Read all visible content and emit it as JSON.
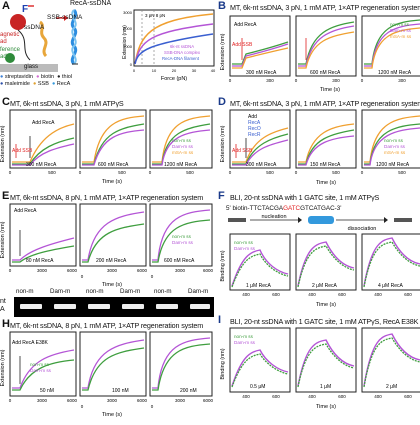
{
  "panel_labels": {
    "A": "A",
    "B": "B",
    "C": "C",
    "D": "D",
    "E": "E",
    "F": "F",
    "G": "G",
    "H": "H",
    "I": "I"
  },
  "headers": {
    "B": "MT, 6k-nt ssDNA, 3 pN, 1 mM ATP, 1×ATP regeneration system",
    "C": "MT, 6k-nt ssDNA, 3 pN, 1 mM ATPγS",
    "D": "MT, 6k-nt ssDNA, 3 pN, 1 mM ATP, 1×ATP regeneration system",
    "E": "MT, 6k-nt ssDNA, 8 pN, 1 mM ATP, 1×ATP regeneration system",
    "F": "BLI, 20-nt ssDNA with 1 GATC site, 1 mM ATPγS",
    "H": "MT, 6k-nt ssDNA, 8 pN, 1 mM ATP, 1×ATP regeneration system",
    "I": "BLI, 20-nt ssDNA with 1 GATC site, 1 mM ATPγS, RecA E38K"
  },
  "schematic": {
    "recA_ssdna": "RecA-ssDNA",
    "ssb_ssdna": "SSB-ssDNA",
    "ssdna": "ssDNA",
    "magnetic": "agnetic",
    "bead": "ad",
    "reference": "ference",
    "bead2": "ad",
    "glass": "glass",
    "legend_items": [
      "streptavidin",
      "biotin",
      "thiol",
      "maleimide",
      "SSB",
      "RecA"
    ],
    "legend_colors": [
      "#3a7fd6",
      "#d16bd1",
      "#222222",
      "#2b4ea8",
      "#e0a030",
      "#3399dd"
    ]
  },
  "force_plot": {
    "ylabel": "Extension (nm)",
    "xlabel": "Force (pN)",
    "annotation": "3 pN 8 pN",
    "legend": [
      "6k-nt ssDNA",
      "SSB-DNA complex",
      "RecA-DNA filament"
    ],
    "yticks": [
      "3000",
      "2000",
      "1000",
      "0"
    ],
    "xticks": [
      "0",
      "10",
      "20",
      "30",
      "40"
    ]
  },
  "B": {
    "ylabel": "Extension (nm)",
    "xlabel": "Time (s)",
    "panels": [
      "300 nM RecA",
      "600 nM RecA",
      "1200 nM RecA"
    ],
    "add_recA": "Add RecA",
    "add_ssb": "Add SSB",
    "legend": [
      "non-m ss",
      "Dam-m ss",
      "mSA-m ss"
    ],
    "xticks": [
      "0",
      "300",
      "0",
      "300",
      "0",
      "300"
    ]
  },
  "C": {
    "ylabel": "Extension (nm)",
    "xlabel": "Time (s)",
    "panels": [
      "300 nM RecA",
      "600 nM RecA",
      "1200 nM RecA"
    ],
    "add_recA": "Add RecA",
    "add_ssb": "Add SSB",
    "legend": [
      "non-m ss",
      "Dam-m ss",
      "mSA-m ss"
    ],
    "xticks": [
      "0",
      "500",
      "0",
      "500",
      "0",
      "500"
    ]
  },
  "D": {
    "ylabel": "Extension (nm)",
    "xlabel": "Time (s)",
    "panels": [
      "300 nM RecA",
      "150 nM RecA",
      "1200 nM RecA"
    ],
    "add_list": [
      "Add",
      "RecA",
      "RecO",
      "RecR"
    ],
    "add_ssb": "Add SSB",
    "legend": [
      "non-m ss",
      "Dam-m ss",
      "mSA-m ss"
    ],
    "xticks": [
      "0",
      "500",
      "0",
      "500",
      "0",
      "500"
    ]
  },
  "E": {
    "ylabel": "Extension (nm)",
    "xlabel": "Time (s)",
    "panels": [
      "80 nM RecA",
      "200 nM RecA",
      "600 nM RecA"
    ],
    "add_recA": "Add RecA",
    "legend": [
      "non-m ss",
      "Dam-m ss"
    ],
    "xticks": [
      "0",
      "3000",
      "6000",
      "0",
      "3000",
      "6000",
      "0",
      "3000",
      "6000"
    ]
  },
  "gel": {
    "labels": [
      "non-m",
      "Dam-m",
      "non-m",
      "Dam-m",
      "non-m",
      "Dam-m"
    ],
    "side_label_1": "nt",
    "side_label_2": "A"
  },
  "F": {
    "sequence_prefix": "5' biotin-TTCTACGA",
    "sequence_site": "GATC",
    "sequence_suffix": "GTCATGAC-3'",
    "nucleation": "nucleation",
    "dissociation": "dissociation",
    "ylabel": "Binding (nm)",
    "xlabel": "Time (s)",
    "panels": [
      "1 μM RecA",
      "2 μM RecA",
      "4 μM RecA"
    ],
    "legend": [
      "non-m ss",
      "Dam-m ss"
    ],
    "xticks": [
      "400",
      "600",
      "400",
      "600",
      "400",
      "600"
    ]
  },
  "H": {
    "ylabel": "Extension (nm)",
    "xlabel": "Time (s)",
    "panels": [
      "50 nM",
      "100 nM",
      "200 nM"
    ],
    "add_recA": "Add RecA E38K",
    "legend": [
      "non-m ss",
      "Dam-m ss"
    ],
    "xticks": [
      "0",
      "3000",
      "6000",
      "0",
      "3000",
      "6000",
      "0",
      "3000",
      "6000"
    ]
  },
  "I": {
    "ylabel": "Binding (nm)",
    "xlabel": "Time (s)",
    "panels": [
      "0.5 μM",
      "1 μM",
      "2 μM"
    ],
    "legend": [
      "non-m ss",
      "Dam-m ss"
    ],
    "xticks": [
      "400",
      "600",
      "400",
      "600",
      "400",
      "600"
    ]
  },
  "colors": {
    "green": "#3f9e3f",
    "purple": "#b455d6",
    "orange": "#f0a030",
    "red": "#e02020",
    "blue": "#3a5fd0"
  }
}
